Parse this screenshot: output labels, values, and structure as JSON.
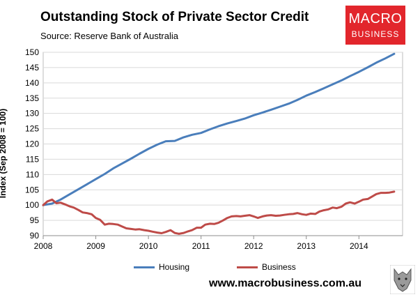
{
  "header": {
    "title": "Outstanding Stock of Private Sector Credit",
    "subtitle": "Source: Reserve Bank of Australia"
  },
  "logo": {
    "line1": "MACRO",
    "line2": "BUSINESS",
    "bg_color": "#e2262c"
  },
  "footer": {
    "url": "www.macrobusiness.com.au"
  },
  "chart_data": {
    "type": "line",
    "title": "Outstanding Stock of Private Sector Credit",
    "ylabel": "Index (Sep 2008 = 100)",
    "xlabel": "",
    "ylim": [
      90,
      150
    ],
    "xlim": [
      2008,
      2014.83
    ],
    "yticks": [
      90,
      95,
      100,
      105,
      110,
      115,
      120,
      125,
      130,
      135,
      140,
      145,
      150
    ],
    "xticks": [
      2008,
      2009,
      2010,
      2011,
      2012,
      2013,
      2014
    ],
    "xtick_labels": [
      "2008",
      "2009",
      "2010",
      "2011",
      "2012",
      "2013",
      "2014"
    ],
    "grid": true,
    "legend_position": "bottom",
    "series": [
      {
        "name": "Housing",
        "color": "#4a7ebb",
        "x": [
          2008.0,
          2008.17,
          2008.33,
          2008.5,
          2008.67,
          2008.83,
          2009.0,
          2009.17,
          2009.33,
          2009.5,
          2009.67,
          2009.83,
          2010.0,
          2010.17,
          2010.33,
          2010.5,
          2010.67,
          2010.83,
          2011.0,
          2011.17,
          2011.33,
          2011.5,
          2011.67,
          2011.83,
          2012.0,
          2012.17,
          2012.33,
          2012.5,
          2012.67,
          2012.83,
          2013.0,
          2013.17,
          2013.33,
          2013.5,
          2013.67,
          2013.83,
          2014.0,
          2014.17,
          2014.33,
          2014.5,
          2014.67
        ],
        "values": [
          100.0,
          100.5,
          101.8,
          103.5,
          105.2,
          106.8,
          108.5,
          110.2,
          112.0,
          113.6,
          115.2,
          116.8,
          118.4,
          119.8,
          120.9,
          121.0,
          122.2,
          123.0,
          123.6,
          124.8,
          125.8,
          126.7,
          127.5,
          128.3,
          129.4,
          130.3,
          131.2,
          132.2,
          133.2,
          134.4,
          135.8,
          137.0,
          138.2,
          139.5,
          140.8,
          142.2,
          143.6,
          145.1,
          146.6,
          148.0,
          149.5
        ]
      },
      {
        "name": "Business",
        "color": "#be4b48",
        "x": [
          2008.0,
          2008.08,
          2008.17,
          2008.25,
          2008.33,
          2008.42,
          2008.5,
          2008.58,
          2008.67,
          2008.75,
          2008.83,
          2008.92,
          2009.0,
          2009.08,
          2009.17,
          2009.25,
          2009.33,
          2009.42,
          2009.5,
          2009.58,
          2009.67,
          2009.75,
          2009.83,
          2009.92,
          2010.0,
          2010.08,
          2010.17,
          2010.25,
          2010.33,
          2010.42,
          2010.5,
          2010.58,
          2010.67,
          2010.75,
          2010.83,
          2010.92,
          2011.0,
          2011.08,
          2011.17,
          2011.25,
          2011.33,
          2011.42,
          2011.5,
          2011.58,
          2011.67,
          2011.75,
          2011.83,
          2011.92,
          2012.0,
          2012.08,
          2012.17,
          2012.25,
          2012.33,
          2012.42,
          2012.5,
          2012.58,
          2012.67,
          2012.75,
          2012.83,
          2012.92,
          2013.0,
          2013.08,
          2013.17,
          2013.25,
          2013.33,
          2013.42,
          2013.5,
          2013.58,
          2013.67,
          2013.75,
          2013.83,
          2013.92,
          2014.0,
          2014.08,
          2014.17,
          2014.25,
          2014.33,
          2014.42,
          2014.5,
          2014.58,
          2014.67
        ],
        "values": [
          100.0,
          101.2,
          101.8,
          100.6,
          100.8,
          100.2,
          99.6,
          99.2,
          98.4,
          97.6,
          97.4,
          97.0,
          95.8,
          95.2,
          93.6,
          93.9,
          93.8,
          93.6,
          93.0,
          92.4,
          92.2,
          92.0,
          92.1,
          91.8,
          91.6,
          91.3,
          91.0,
          90.8,
          91.2,
          91.8,
          90.9,
          90.6,
          90.9,
          91.4,
          91.8,
          92.6,
          92.6,
          93.6,
          93.9,
          93.8,
          94.2,
          95.0,
          95.8,
          96.3,
          96.4,
          96.3,
          96.5,
          96.7,
          96.3,
          95.8,
          96.3,
          96.6,
          96.7,
          96.5,
          96.6,
          96.8,
          97.0,
          97.1,
          97.4,
          97.0,
          96.8,
          97.2,
          97.1,
          97.9,
          98.3,
          98.6,
          99.2,
          99.0,
          99.5,
          100.5,
          100.9,
          100.5,
          101.1,
          101.8,
          102.0,
          102.8,
          103.6,
          104.0,
          104.0,
          104.1,
          104.4
        ]
      }
    ]
  }
}
